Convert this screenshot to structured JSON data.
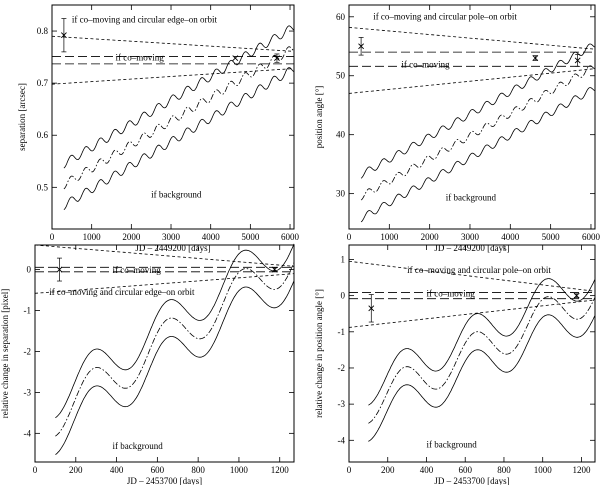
{
  "chart_data": [
    {
      "type": "line",
      "panel": "top-left",
      "xlabel": "JD – 2449200 [days]",
      "ylabel": "separation [arcsec]",
      "xlim": [
        0,
        6100
      ],
      "ylim": [
        0.42,
        0.85
      ],
      "xticks": [
        0,
        1000,
        2000,
        3000,
        4000,
        5000,
        6000
      ],
      "yticks": [
        0.5,
        0.6,
        0.7,
        0.8
      ],
      "ytick_labels": [
        "0.5",
        "0.6",
        "0.7",
        "0.8"
      ],
      "annotations": [
        {
          "text": "if co–moving and circular edge–on orbit",
          "x": 500,
          "y": 0.816
        },
        {
          "text": "if co–moving",
          "x": 1600,
          "y": 0.743
        },
        {
          "text": "if background",
          "x": 2500,
          "y": 0.48
        }
      ],
      "comoving": {
        "x": [
          0,
          6100
        ],
        "y": 0.744,
        "gap": 0.007
      },
      "orbit": {
        "x": [
          0,
          6100
        ],
        "start": [
          0.79,
          0.698
        ],
        "end": [
          0.761,
          0.728
        ]
      },
      "background": {
        "x": [
          300,
          6100
        ],
        "y_start": 0.505,
        "y_end": 0.768,
        "offset": 0.04,
        "amplitude": 0.008,
        "period": 365
      },
      "measurements": [
        {
          "x": 300,
          "y": 0.792,
          "err": 0.032
        },
        {
          "x": 4620,
          "y": 0.748,
          "err": 0.0
        },
        {
          "x": 5670,
          "y": 0.748,
          "err": 0.008
        }
      ]
    },
    {
      "type": "line",
      "panel": "top-right",
      "xlabel": "JD – 2449200 [days]",
      "ylabel": "position angle [°]",
      "xlim": [
        0,
        6100
      ],
      "ylim": [
        24,
        62
      ],
      "xticks": [
        0,
        1000,
        2000,
        3000,
        4000,
        5000,
        6000
      ],
      "yticks": [
        30,
        40,
        50,
        60
      ],
      "ytick_labels": [
        "30",
        "40",
        "50",
        "60"
      ],
      "annotations": [
        {
          "text": "if co–moving and circular pole–on orbit",
          "x": 600,
          "y": 59.5
        },
        {
          "text": "if co–moving",
          "x": 1300,
          "y": 51.4
        },
        {
          "text": "if background",
          "x": 2400,
          "y": 28.8
        }
      ],
      "comoving": {
        "x": [
          0,
          6100
        ],
        "y": 52.8,
        "gap": 1.2
      },
      "orbit": {
        "x": [
          0,
          6100
        ],
        "start": [
          58.2,
          47.0
        ],
        "end": [
          54.5,
          51.2
        ]
      },
      "background": {
        "x": [
          300,
          6100
        ],
        "y_start": 29.5,
        "y_end": 51.6,
        "offset": 3.7,
        "amplitude": 0.6,
        "period": 365
      },
      "measurements": [
        {
          "x": 300,
          "y": 55.0,
          "err": 1.5
        },
        {
          "x": 4620,
          "y": 53.0,
          "err": 0.4
        },
        {
          "x": 5670,
          "y": 52.6,
          "err": 1.0
        }
      ]
    },
    {
      "type": "line",
      "panel": "bottom-left",
      "xlabel": "JD – 2453700 [days]",
      "ylabel": "relative change in separation [pixel]",
      "xlim": [
        0,
        1270
      ],
      "ylim": [
        -4.7,
        0.6
      ],
      "xticks": [
        0,
        200,
        400,
        600,
        800,
        1000,
        1200
      ],
      "yticks": [
        -4,
        -3,
        -2,
        -1,
        0
      ],
      "ytick_labels": [
        "-4",
        "-3",
        "-2",
        "-1",
        "0"
      ],
      "annotations": [
        {
          "text": "if co–moving",
          "x": 380,
          "y": -0.08
        },
        {
          "text": "if co–moving and circular edge–on orbit",
          "x": 70,
          "y": -0.62
        },
        {
          "text": "if background",
          "x": 380,
          "y": -4.38
        }
      ],
      "comoving": {
        "x": [
          0,
          1270
        ],
        "y": 0.0,
        "gap": 0.055
      },
      "orbit": {
        "x": [
          0,
          1270
        ],
        "start": [
          0.6,
          -0.58
        ],
        "end": [
          0.08,
          -0.1
        ]
      },
      "background": {
        "x": [
          100,
          1270
        ],
        "y_start": -3.55,
        "y_end": 0.32,
        "offset": 0.45,
        "amplitude": 0.52,
        "period": 365
      },
      "measurements": [
        {
          "x": 120,
          "y": 0.0,
          "err": 0.28
        },
        {
          "x": 1175,
          "y": 0.0,
          "err": 0.05
        }
      ]
    },
    {
      "type": "line",
      "panel": "bottom-right",
      "xlabel": "JD – 2453700 [days]",
      "ylabel": "relative change in position angle [°]",
      "xlim": [
        0,
        1270
      ],
      "ylim": [
        -4.6,
        1.4
      ],
      "xticks": [
        0,
        200,
        400,
        600,
        800,
        1000,
        1200
      ],
      "yticks": [
        -4,
        -3,
        -2,
        -1,
        0,
        1
      ],
      "ytick_labels": [
        "-4",
        "-3",
        "-2",
        "-1",
        "0",
        "1"
      ],
      "annotations": [
        {
          "text": "if co–moving and circular pole–on orbit",
          "x": 300,
          "y": 0.63
        },
        {
          "text": "if co–moving",
          "x": 400,
          "y": -0.02
        },
        {
          "text": "if background",
          "x": 400,
          "y": -4.2
        }
      ],
      "comoving": {
        "x": [
          0,
          1270
        ],
        "y": 0.0,
        "gap": 0.085
      },
      "orbit": {
        "x": [
          0,
          1270
        ],
        "start": [
          0.95,
          -0.88
        ],
        "end": [
          0.12,
          -0.12
        ]
      },
      "background": {
        "x": [
          100,
          1270
        ],
        "y_start": -3.0,
        "y_end": 0.1,
        "offset": 0.5,
        "amplitude": 0.53,
        "period": 365
      },
      "measurements": [
        {
          "x": 115,
          "y": -0.35,
          "err": 0.38
        },
        {
          "x": 1175,
          "y": 0.0,
          "err": 0.05
        }
      ]
    }
  ]
}
